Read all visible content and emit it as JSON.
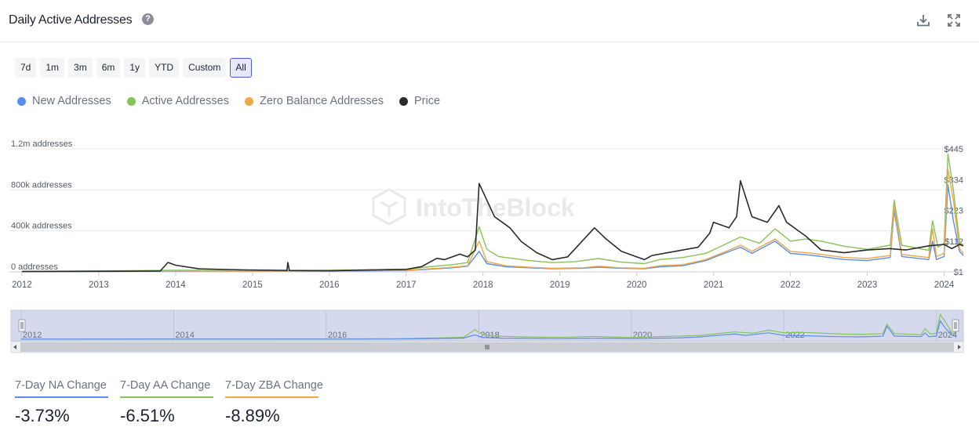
{
  "header": {
    "title": "Daily Active Addresses",
    "help_icon": "question-circle-icon",
    "download_icon": "download-icon",
    "fullscreen_icon": "expand-icon"
  },
  "range_buttons": [
    "7d",
    "1m",
    "3m",
    "6m",
    "1y",
    "YTD",
    "Custom",
    "All"
  ],
  "active_range": "All",
  "watermark": "IntoTheBlock",
  "colors": {
    "new": "#5b8def",
    "active": "#86c35a",
    "zero": "#efa844",
    "price": "#2b2b2e"
  },
  "chart_data": {
    "type": "line",
    "x_ticks": [
      "2012",
      "2013",
      "2014",
      "2015",
      "2016",
      "2017",
      "2018",
      "2019",
      "2020",
      "2021",
      "2022",
      "2023",
      "2024"
    ],
    "x_range": [
      2011.97,
      2024.25
    ],
    "left_axis": {
      "ticks": [
        "0 addresses",
        "400k addresses",
        "800k addresses",
        "1.2m addresses"
      ],
      "tick_values": [
        0,
        400000,
        800000,
        1200000
      ],
      "range": [
        0,
        1200000
      ]
    },
    "right_axis": {
      "ticks": [
        "$1",
        "$112",
        "$223",
        "$334",
        "$445"
      ],
      "tick_values": [
        1,
        112,
        223,
        334,
        445
      ],
      "range": [
        1,
        445
      ]
    },
    "grid": "horizontal",
    "legend_position": "top-left",
    "series": [
      {
        "name": "New Addresses",
        "axis": "left",
        "color": "#5b8def",
        "points": [
          [
            2012,
            2000
          ],
          [
            2013,
            4000
          ],
          [
            2014,
            8000
          ],
          [
            2015,
            6000
          ],
          [
            2016,
            8000
          ],
          [
            2017,
            12000
          ],
          [
            2017.3,
            25000
          ],
          [
            2017.6,
            40000
          ],
          [
            2017.8,
            55000
          ],
          [
            2017.95,
            200000
          ],
          [
            2018.05,
            80000
          ],
          [
            2018.3,
            50000
          ],
          [
            2018.6,
            40000
          ],
          [
            2018.9,
            30000
          ],
          [
            2019.3,
            35000
          ],
          [
            2019.5,
            45000
          ],
          [
            2019.8,
            35000
          ],
          [
            2020.1,
            30000
          ],
          [
            2020.3,
            50000
          ],
          [
            2020.6,
            60000
          ],
          [
            2020.9,
            110000
          ],
          [
            2021.1,
            170000
          ],
          [
            2021.35,
            240000
          ],
          [
            2021.5,
            180000
          ],
          [
            2021.8,
            300000
          ],
          [
            2022.0,
            180000
          ],
          [
            2022.3,
            160000
          ],
          [
            2022.7,
            120000
          ],
          [
            2023.0,
            110000
          ],
          [
            2023.3,
            140000
          ],
          [
            2023.35,
            600000
          ],
          [
            2023.45,
            150000
          ],
          [
            2023.8,
            120000
          ],
          [
            2023.85,
            300000
          ],
          [
            2023.9,
            120000
          ],
          [
            2024.0,
            150000
          ],
          [
            2024.05,
            850000
          ],
          [
            2024.12,
            500000
          ],
          [
            2024.2,
            200000
          ],
          [
            2024.25,
            160000
          ]
        ]
      },
      {
        "name": "Active Addresses",
        "axis": "left",
        "color": "#86c35a",
        "points": [
          [
            2012,
            5000
          ],
          [
            2013,
            10000
          ],
          [
            2014,
            15000
          ],
          [
            2015,
            12000
          ],
          [
            2016,
            15000
          ],
          [
            2017,
            25000
          ],
          [
            2017.3,
            50000
          ],
          [
            2017.6,
            70000
          ],
          [
            2017.8,
            90000
          ],
          [
            2017.95,
            440000
          ],
          [
            2018.05,
            220000
          ],
          [
            2018.2,
            150000
          ],
          [
            2018.6,
            110000
          ],
          [
            2018.9,
            90000
          ],
          [
            2019.2,
            100000
          ],
          [
            2019.5,
            130000
          ],
          [
            2019.8,
            95000
          ],
          [
            2020.1,
            80000
          ],
          [
            2020.3,
            120000
          ],
          [
            2020.6,
            140000
          ],
          [
            2020.9,
            180000
          ],
          [
            2021.1,
            250000
          ],
          [
            2021.35,
            340000
          ],
          [
            2021.6,
            280000
          ],
          [
            2021.8,
            420000
          ],
          [
            2022.0,
            300000
          ],
          [
            2022.2,
            320000
          ],
          [
            2022.4,
            300000
          ],
          [
            2022.7,
            250000
          ],
          [
            2023.0,
            220000
          ],
          [
            2023.3,
            260000
          ],
          [
            2023.35,
            700000
          ],
          [
            2023.45,
            260000
          ],
          [
            2023.8,
            210000
          ],
          [
            2023.85,
            500000
          ],
          [
            2023.92,
            240000
          ],
          [
            2024.0,
            280000
          ],
          [
            2024.05,
            1150000
          ],
          [
            2024.12,
            800000
          ],
          [
            2024.2,
            300000
          ],
          [
            2024.25,
            250000
          ]
        ]
      },
      {
        "name": "Zero Balance Addresses",
        "axis": "left",
        "color": "#efa844",
        "points": [
          [
            2012,
            3000
          ],
          [
            2013,
            6000
          ],
          [
            2014,
            10000
          ],
          [
            2015,
            8000
          ],
          [
            2016,
            10000
          ],
          [
            2017,
            15000
          ],
          [
            2017.3,
            30000
          ],
          [
            2017.6,
            45000
          ],
          [
            2017.8,
            60000
          ],
          [
            2017.95,
            300000
          ],
          [
            2018.05,
            100000
          ],
          [
            2018.3,
            60000
          ],
          [
            2018.6,
            45000
          ],
          [
            2018.9,
            35000
          ],
          [
            2019.3,
            40000
          ],
          [
            2019.5,
            55000
          ],
          [
            2019.8,
            40000
          ],
          [
            2020.1,
            35000
          ],
          [
            2020.3,
            60000
          ],
          [
            2020.6,
            70000
          ],
          [
            2020.9,
            120000
          ],
          [
            2021.1,
            180000
          ],
          [
            2021.35,
            260000
          ],
          [
            2021.5,
            200000
          ],
          [
            2021.8,
            320000
          ],
          [
            2022.0,
            200000
          ],
          [
            2022.3,
            180000
          ],
          [
            2022.7,
            140000
          ],
          [
            2023.0,
            130000
          ],
          [
            2023.3,
            160000
          ],
          [
            2023.35,
            650000
          ],
          [
            2023.45,
            170000
          ],
          [
            2023.8,
            140000
          ],
          [
            2023.85,
            420000
          ],
          [
            2023.9,
            150000
          ],
          [
            2024.0,
            180000
          ],
          [
            2024.05,
            1000000
          ],
          [
            2024.12,
            700000
          ],
          [
            2024.2,
            230000
          ],
          [
            2024.25,
            180000
          ]
        ]
      },
      {
        "name": "Price",
        "axis": "right",
        "color": "#2b2b2e",
        "points": [
          [
            2012,
            2
          ],
          [
            2013,
            3
          ],
          [
            2013.8,
            4
          ],
          [
            2013.9,
            35
          ],
          [
            2014.0,
            25
          ],
          [
            2014.3,
            12
          ],
          [
            2014.9,
            8
          ],
          [
            2015.45,
            6
          ],
          [
            2015.46,
            35
          ],
          [
            2015.48,
            6
          ],
          [
            2016,
            5
          ],
          [
            2017,
            10
          ],
          [
            2017.2,
            20
          ],
          [
            2017.4,
            50
          ],
          [
            2017.5,
            45
          ],
          [
            2017.7,
            65
          ],
          [
            2017.8,
            55
          ],
          [
            2017.9,
            80
          ],
          [
            2017.95,
            320
          ],
          [
            2018.05,
            260
          ],
          [
            2018.15,
            200
          ],
          [
            2018.3,
            170
          ],
          [
            2018.35,
            160
          ],
          [
            2018.5,
            110
          ],
          [
            2018.7,
            70
          ],
          [
            2018.9,
            45
          ],
          [
            2019.1,
            55
          ],
          [
            2019.45,
            160
          ],
          [
            2019.6,
            120
          ],
          [
            2019.8,
            75
          ],
          [
            2020.0,
            55
          ],
          [
            2020.1,
            45
          ],
          [
            2020.2,
            60
          ],
          [
            2020.5,
            75
          ],
          [
            2020.6,
            80
          ],
          [
            2020.8,
            90
          ],
          [
            2020.95,
            140
          ],
          [
            2021.0,
            180
          ],
          [
            2021.2,
            160
          ],
          [
            2021.3,
            200
          ],
          [
            2021.35,
            330
          ],
          [
            2021.5,
            200
          ],
          [
            2021.7,
            180
          ],
          [
            2021.85,
            240
          ],
          [
            2021.95,
            180
          ],
          [
            2022.2,
            130
          ],
          [
            2022.4,
            80
          ],
          [
            2022.7,
            70
          ],
          [
            2023.0,
            80
          ],
          [
            2023.3,
            85
          ],
          [
            2023.5,
            80
          ],
          [
            2023.8,
            95
          ],
          [
            2024.0,
            100
          ],
          [
            2024.1,
            85
          ],
          [
            2024.2,
            100
          ],
          [
            2024.25,
            95
          ]
        ]
      }
    ]
  },
  "navigator": {
    "x_ticks": [
      "2012",
      "2014",
      "2016",
      "2018",
      "2020",
      "2022",
      "2024"
    ],
    "x_tick_values": [
      2012,
      2014,
      2016,
      2018,
      2020,
      2022,
      2024
    ],
    "range": [
      2011.97,
      2024.25
    ],
    "handle_icon": "grip-icon"
  },
  "stats": [
    {
      "label": "7-Day NA Change",
      "value": "-3.73%",
      "color": "#5b8def"
    },
    {
      "label": "7-Day AA Change",
      "value": "-6.51%",
      "color": "#86c35a"
    },
    {
      "label": "7-Day ZBA Change",
      "value": "-8.89%",
      "color": "#efa844"
    }
  ]
}
